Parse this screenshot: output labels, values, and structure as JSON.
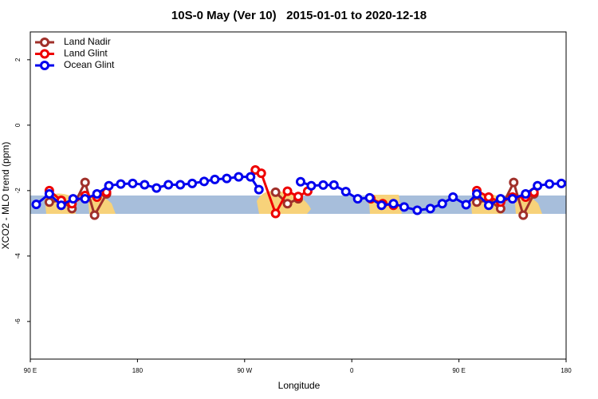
{
  "chart_data": {
    "type": "line",
    "title": "10S-0 May (Ver 10)   2015-01-01 to 2020-12-18",
    "x_label": "Longitude",
    "y_label": "XCO2 - MLO trend (ppm)",
    "xlim": [
      90,
      540
    ],
    "ylim": [
      -7.15,
      2.85
    ],
    "xticks": [
      {
        "value": 90,
        "label": "90 E"
      },
      {
        "value": 180,
        "label": "180"
      },
      {
        "value": 270,
        "label": "90 W"
      },
      {
        "value": 360,
        "label": "0"
      },
      {
        "value": 450,
        "label": "90 E"
      },
      {
        "value": 540,
        "label": "180"
      }
    ],
    "yticks": [
      2,
      0,
      -2,
      -4,
      -6
    ],
    "legend": "top-left",
    "series": [
      {
        "name": "Land Nadir",
        "color": "#a0302a",
        "x": [
          106,
          116,
          125,
          136,
          144,
          154,
          null,
          296,
          306,
          315,
          null,
          465,
          475,
          485,
          496,
          504,
          513
        ],
        "values": [
          -2.35,
          -2.3,
          -2.55,
          -1.75,
          -2.75,
          -2.1,
          null,
          -2.05,
          -2.4,
          -2.25,
          null,
          -2.35,
          -2.3,
          -2.55,
          -1.75,
          -2.75,
          -2.1
        ]
      },
      {
        "name": "Land Glint",
        "color": "#ee0000",
        "x": [
          106,
          116,
          125,
          136,
          146,
          154,
          null,
          279,
          284,
          296,
          306,
          315,
          323,
          null,
          376,
          386,
          395,
          null,
          465,
          475,
          485,
          495,
          506,
          513
        ],
        "values": [
          -2.0,
          -2.3,
          -2.4,
          -2.15,
          -2.2,
          -2.05,
          null,
          -1.37,
          -1.47,
          -2.7,
          -2.02,
          -2.18,
          -2.02,
          null,
          -2.25,
          -2.4,
          -2.45,
          null,
          -2.0,
          -2.2,
          -2.35,
          -2.2,
          -2.2,
          -2.05
        ]
      },
      {
        "name": "Ocean Glint",
        "color": "#0000ee",
        "x": [
          95,
          106,
          116,
          126,
          136,
          146,
          156,
          166,
          176,
          186,
          196,
          206,
          216,
          226,
          236,
          245,
          255,
          265,
          275,
          282,
          null,
          317,
          326,
          336,
          345,
          355,
          365,
          375,
          385,
          395,
          404,
          415,
          426,
          436,
          445,
          456,
          465,
          475,
          485,
          495,
          506,
          516,
          526,
          536
        ],
        "values": [
          -2.42,
          -2.1,
          -2.45,
          -2.25,
          -2.25,
          -2.1,
          -1.85,
          -1.8,
          -1.78,
          -1.82,
          -1.92,
          -1.82,
          -1.82,
          -1.78,
          -1.72,
          -1.66,
          -1.63,
          -1.58,
          -1.58,
          -1.97,
          null,
          -1.73,
          -1.85,
          -1.83,
          -1.83,
          -2.03,
          -2.25,
          -2.22,
          -2.45,
          -2.4,
          -2.5,
          -2.6,
          -2.55,
          -2.4,
          -2.2,
          -2.43,
          -2.1,
          -2.45,
          -2.25,
          -2.25,
          -2.1,
          -1.85,
          -1.8,
          -1.78
        ]
      }
    ]
  }
}
